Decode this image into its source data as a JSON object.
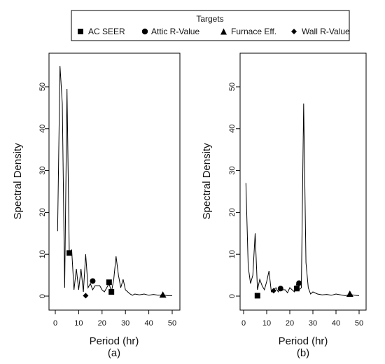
{
  "legend": {
    "title": "Targets",
    "entries": [
      {
        "label": "AC SEER",
        "marker": "square"
      },
      {
        "label": "Attic R-Value",
        "marker": "circle"
      },
      {
        "label": "Furnace Eff.",
        "marker": "triangle"
      },
      {
        "label": "Wall R-Value",
        "marker": "diamond"
      }
    ]
  },
  "chart_data": [
    {
      "type": "line",
      "panel_label": "(a)",
      "xlabel": "Period (hr)",
      "ylabel": "Spectral Density",
      "xlim": [
        0,
        50
      ],
      "ylim": [
        0,
        55
      ],
      "xticks": [
        0,
        10,
        20,
        30,
        40,
        50
      ],
      "yticks": [
        0,
        10,
        20,
        30,
        40,
        50
      ],
      "series": [
        {
          "x": [
            1,
            2,
            3,
            4,
            5,
            6,
            7,
            8,
            9,
            10,
            11,
            12,
            13,
            14,
            15,
            16,
            17,
            18,
            19,
            20,
            21,
            22,
            23,
            24,
            25,
            26,
            27,
            28,
            29,
            30,
            31,
            32,
            33,
            34,
            36,
            38,
            40,
            42,
            44,
            46,
            48,
            50
          ],
          "y": [
            15.5,
            55,
            46,
            2,
            49.5,
            10,
            11,
            1.5,
            6.5,
            1.5,
            6.5,
            1,
            10,
            2,
            3,
            1.5,
            2.5,
            2.5,
            2.5,
            1.5,
            1,
            2,
            3,
            1,
            4,
            9.5,
            5,
            2,
            4,
            1.5,
            1,
            0.5,
            0.2,
            0.5,
            0.3,
            0.5,
            0.2,
            0.4,
            0.2,
            0.3,
            0.1,
            0.1
          ]
        }
      ],
      "markers": [
        {
          "target": "AC SEER",
          "shape": "square",
          "x": 6,
          "y": 10.3
        },
        {
          "target": "AC SEER",
          "shape": "square",
          "x": 23,
          "y": 3.3
        },
        {
          "target": "AC SEER",
          "shape": "square",
          "x": 24,
          "y": 1.0
        },
        {
          "target": "Attic R-Value",
          "shape": "circle",
          "x": 16,
          "y": 3.6
        },
        {
          "target": "Wall R-Value",
          "shape": "diamond",
          "x": 13,
          "y": 0.1
        },
        {
          "target": "Furnace Eff.",
          "shape": "triangle",
          "x": 46,
          "y": 0.3
        }
      ]
    },
    {
      "type": "line",
      "panel_label": "(b)",
      "xlabel": "Period (hr)",
      "ylabel": "Spectral Density",
      "xlim": [
        0,
        50
      ],
      "ylim": [
        0,
        55
      ],
      "xticks": [
        0,
        10,
        20,
        30,
        40,
        50
      ],
      "yticks": [
        0,
        10,
        20,
        30,
        40,
        50
      ],
      "series": [
        {
          "x": [
            1,
            2,
            3,
            4,
            5,
            6,
            7,
            8,
            9,
            10,
            11,
            12,
            13,
            14,
            15,
            16,
            17,
            18,
            19,
            20,
            21,
            22,
            23,
            24,
            25,
            26,
            27,
            28,
            29,
            30,
            32,
            34,
            36,
            38,
            40,
            42,
            44,
            46,
            48,
            50
          ],
          "y": [
            27,
            7,
            3,
            5,
            15,
            1.5,
            4,
            2.5,
            1.5,
            3.5,
            6,
            1,
            1.5,
            2,
            1,
            2,
            1.5,
            1.5,
            0.8,
            2,
            1.5,
            1,
            3,
            1.5,
            2,
            46,
            8,
            2,
            0.5,
            1,
            0.5,
            0.3,
            0.4,
            0.2,
            0.5,
            0.3,
            0.1,
            0.4,
            0.2,
            0.1
          ]
        }
      ],
      "markers": [
        {
          "target": "AC SEER",
          "shape": "square",
          "x": 6,
          "y": 0.1
        },
        {
          "target": "AC SEER",
          "shape": "square",
          "x": 23,
          "y": 1.8
        },
        {
          "target": "Attic R-Value",
          "shape": "circle",
          "x": 16,
          "y": 1.8
        },
        {
          "target": "Attic R-Value",
          "shape": "circle",
          "x": 24,
          "y": 3.1
        },
        {
          "target": "Wall R-Value",
          "shape": "diamond",
          "x": 13,
          "y": 1.3
        },
        {
          "target": "Furnace Eff.",
          "shape": "triangle",
          "x": 46,
          "y": 0.5
        }
      ]
    }
  ]
}
